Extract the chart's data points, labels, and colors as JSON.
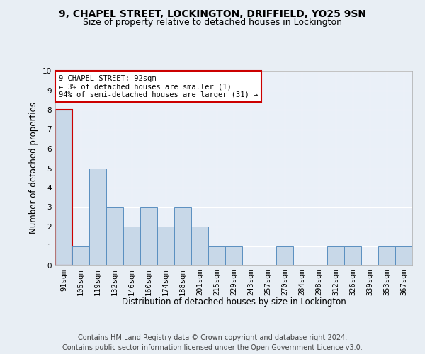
{
  "title1": "9, CHAPEL STREET, LOCKINGTON, DRIFFIELD, YO25 9SN",
  "title2": "Size of property relative to detached houses in Lockington",
  "xlabel": "Distribution of detached houses by size in Lockington",
  "ylabel": "Number of detached properties",
  "categories": [
    "91sqm",
    "105sqm",
    "119sqm",
    "132sqm",
    "146sqm",
    "160sqm",
    "174sqm",
    "188sqm",
    "201sqm",
    "215sqm",
    "229sqm",
    "243sqm",
    "257sqm",
    "270sqm",
    "284sqm",
    "298sqm",
    "312sqm",
    "326sqm",
    "339sqm",
    "353sqm",
    "367sqm"
  ],
  "values": [
    8,
    1,
    5,
    3,
    2,
    3,
    2,
    3,
    2,
    1,
    1,
    0,
    0,
    1,
    0,
    0,
    1,
    1,
    0,
    1,
    1
  ],
  "highlight_index": 0,
  "bar_color": "#c8d8e8",
  "bar_edge_color": "#5a8fc0",
  "highlight_bar_edge_color": "#cc0000",
  "annotation_box_text": "9 CHAPEL STREET: 92sqm\n← 3% of detached houses are smaller (1)\n94% of semi-detached houses are larger (31) →",
  "annotation_box_color": "#ffffff",
  "annotation_box_edge_color": "#cc0000",
  "footer1": "Contains HM Land Registry data © Crown copyright and database right 2024.",
  "footer2": "Contains public sector information licensed under the Open Government Licence v3.0.",
  "ylim": [
    0,
    10
  ],
  "yticks": [
    0,
    1,
    2,
    3,
    4,
    5,
    6,
    7,
    8,
    9,
    10
  ],
  "background_color": "#e8eef4",
  "plot_background_color": "#eaf0f8",
  "grid_color": "#ffffff",
  "title1_fontsize": 10,
  "title2_fontsize": 9,
  "xlabel_fontsize": 8.5,
  "ylabel_fontsize": 8.5,
  "tick_fontsize": 7.5,
  "annotation_fontsize": 7.5,
  "footer_fontsize": 7
}
